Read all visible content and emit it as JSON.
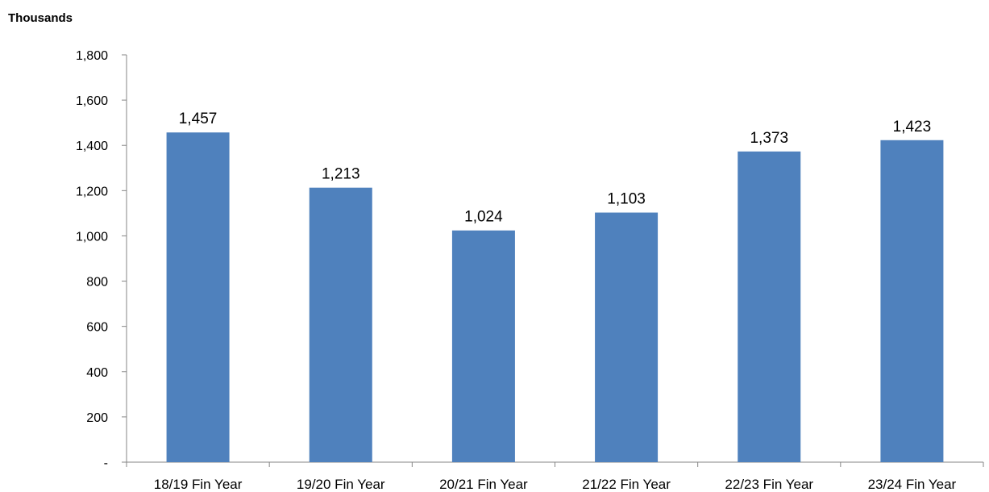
{
  "chart_data": {
    "type": "bar",
    "title": "",
    "unit_label": "Thousands",
    "xlabel": "",
    "ylabel": "",
    "categories": [
      "18/19 Fin Year",
      "19/20 Fin Year",
      "20/21 Fin Year",
      "21/22 Fin Year",
      "22/23 Fin Year",
      "23/24 Fin Year"
    ],
    "values": [
      1457,
      1213,
      1024,
      1103,
      1373,
      1423
    ],
    "value_labels": [
      "1,457",
      "1,213",
      "1,024",
      "1,103",
      "1,373",
      "1,423"
    ],
    "ylim": [
      0,
      1800
    ],
    "yticks": [
      0,
      200,
      400,
      600,
      800,
      1000,
      1200,
      1400,
      1600,
      1800
    ],
    "ytick_labels": [
      "-",
      "200",
      "400",
      "600",
      "800",
      "1,000",
      "1,200",
      "1,400",
      "1,600",
      "1,800"
    ],
    "bar_color": "#4f81bd",
    "grid": false,
    "legend": "none"
  }
}
